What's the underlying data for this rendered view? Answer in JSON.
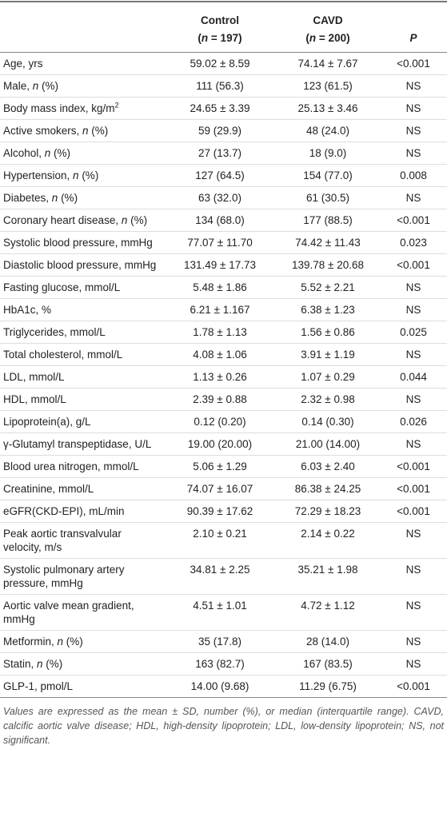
{
  "table": {
    "header": [
      [
        "Control",
        [
          "(",
          {
            "text": "n",
            "italic": true
          },
          " = 197)"
        ]
      ],
      [
        "CAVD",
        [
          "(",
          {
            "text": "n",
            "italic": true
          },
          " = 200)"
        ]
      ],
      [
        {
          "text": "P",
          "italic": true
        }
      ]
    ],
    "rows": [
      {
        "label": [
          "Age, yrs"
        ],
        "control": "59.02 ± 8.59",
        "cavd": "74.14 ± 7.67",
        "p": "<0.001"
      },
      {
        "label": [
          "Male, ",
          {
            "text": "n",
            "italic": true
          },
          " (%)"
        ],
        "control": "111 (56.3)",
        "cavd": "123 (61.5)",
        "p": "NS"
      },
      {
        "label": [
          "Body mass index, kg/m",
          {
            "text": "2",
            "sup": true
          }
        ],
        "control": "24.65 ± 3.39",
        "cavd": "25.13 ± 3.46",
        "p": "NS"
      },
      {
        "label": [
          "Active smokers, ",
          {
            "text": "n",
            "italic": true
          },
          " (%)"
        ],
        "control": "59 (29.9)",
        "cavd": "48 (24.0)",
        "p": "NS"
      },
      {
        "label": [
          "Alcohol, ",
          {
            "text": "n",
            "italic": true
          },
          " (%)"
        ],
        "control": "27 (13.7)",
        "cavd": "18 (9.0)",
        "p": "NS"
      },
      {
        "label": [
          "Hypertension, ",
          {
            "text": "n",
            "italic": true
          },
          " (%)"
        ],
        "control": "127 (64.5)",
        "cavd": "154 (77.0)",
        "p": "0.008"
      },
      {
        "label": [
          "Diabetes, ",
          {
            "text": "n",
            "italic": true
          },
          " (%)"
        ],
        "control": "63 (32.0)",
        "cavd": "61 (30.5)",
        "p": "NS"
      },
      {
        "label": [
          "Coronary heart disease, ",
          {
            "text": "n",
            "italic": true
          },
          " (%)"
        ],
        "control": "134 (68.0)",
        "cavd": "177 (88.5)",
        "p": "<0.001"
      },
      {
        "label": [
          "Systolic blood pressure, mmHg"
        ],
        "control": "77.07 ± 11.70",
        "cavd": "74.42 ± 11.43",
        "p": "0.023"
      },
      {
        "label": [
          "Diastolic blood pressure, mmHg"
        ],
        "control": "131.49 ± 17.73",
        "cavd": "139.78 ± 20.68",
        "p": "<0.001"
      },
      {
        "label": [
          "Fasting glucose, mmol/L"
        ],
        "control": "5.48 ± 1.86",
        "cavd": "5.52 ± 2.21",
        "p": "NS"
      },
      {
        "label": [
          "HbA1c, %"
        ],
        "control": "6.21 ± 1.167",
        "cavd": "6.38 ± 1.23",
        "p": "NS"
      },
      {
        "label": [
          "Triglycerides, mmol/L"
        ],
        "control": "1.78 ± 1.13",
        "cavd": "1.56 ± 0.86",
        "p": "0.025"
      },
      {
        "label": [
          "Total cholesterol, mmol/L"
        ],
        "control": "4.08 ± 1.06",
        "cavd": "3.91 ± 1.19",
        "p": "NS"
      },
      {
        "label": [
          "LDL, mmol/L"
        ],
        "control": "1.13 ± 0.26",
        "cavd": "1.07 ± 0.29",
        "p": "0.044"
      },
      {
        "label": [
          "HDL, mmol/L"
        ],
        "control": "2.39 ± 0.88",
        "cavd": "2.32 ± 0.98",
        "p": "NS"
      },
      {
        "label": [
          "Lipoprotein(a), g/L"
        ],
        "control": "0.12 (0.20)",
        "cavd": "0.14 (0.30)",
        "p": "0.026"
      },
      {
        "label": [
          "γ-Glutamyl transpeptidase, U/L"
        ],
        "control": "19.00 (20.00)",
        "cavd": "21.00 (14.00)",
        "p": "NS"
      },
      {
        "label": [
          "Blood urea nitrogen, mmol/L"
        ],
        "control": "5.06 ± 1.29",
        "cavd": "6.03 ± 2.40",
        "p": "<0.001"
      },
      {
        "label": [
          "Creatinine, mmol/L"
        ],
        "control": "74.07 ± 16.07",
        "cavd": "86.38 ± 24.25",
        "p": "<0.001"
      },
      {
        "label": [
          "eGFR(CKD-EPI), mL/min"
        ],
        "control": "90.39 ± 17.62",
        "cavd": "72.29 ± 18.23",
        "p": "<0.001"
      },
      {
        "label": [
          "Peak aortic transvalvular velocity, m/s"
        ],
        "control": "2.10 ± 0.21",
        "cavd": "2.14 ± 0.22",
        "p": "NS"
      },
      {
        "label": [
          "Systolic pulmonary artery pressure, mmHg"
        ],
        "control": "34.81 ± 2.25",
        "cavd": "35.21 ± 1.98",
        "p": "NS"
      },
      {
        "label": [
          "Aortic valve mean gradient, mmHg"
        ],
        "control": "4.51 ± 1.01",
        "cavd": "4.72 ± 1.12",
        "p": "NS"
      },
      {
        "label": [
          "Metformin, ",
          {
            "text": "n",
            "italic": true
          },
          " (%)"
        ],
        "control": "35 (17.8)",
        "cavd": "28 (14.0)",
        "p": "NS"
      },
      {
        "label": [
          "Statin, ",
          {
            "text": "n",
            "italic": true
          },
          " (%)"
        ],
        "control": "163 (82.7)",
        "cavd": "167 (83.5)",
        "p": "NS"
      },
      {
        "label": [
          "GLP-1, pmol/L"
        ],
        "control": "14.00 (9.68)",
        "cavd": "11.29 (6.75)",
        "p": "<0.001"
      }
    ],
    "footnote": "Values are expressed as the mean ± SD, number (%), or median (interquartile range). CAVD, calcific aortic valve disease; HDL, high-density lipoprotein; LDL, low-density lipoprotein; NS, not significant."
  }
}
